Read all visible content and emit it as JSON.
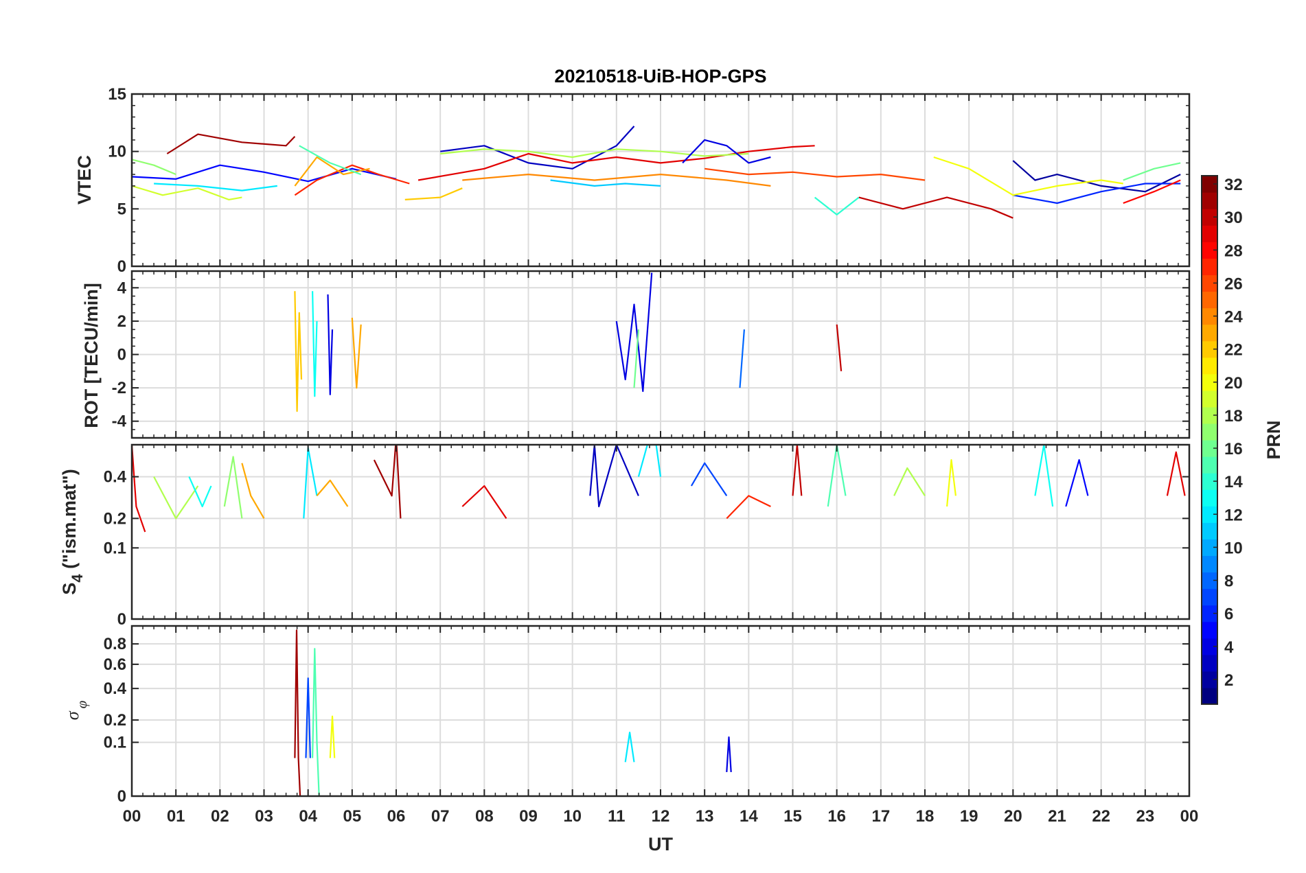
{
  "figure": {
    "title": "20210518-UiB-HOP-GPS",
    "xlabel": "UT",
    "x_tick_labels": [
      "00",
      "01",
      "02",
      "03",
      "04",
      "05",
      "06",
      "07",
      "08",
      "09",
      "10",
      "11",
      "12",
      "13",
      "14",
      "15",
      "16",
      "17",
      "18",
      "19",
      "20",
      "21",
      "22",
      "23",
      "00"
    ]
  },
  "colorbar": {
    "label": "PRN",
    "colormap": "jet",
    "range": [
      1,
      32
    ],
    "tick_values": [
      2,
      4,
      6,
      8,
      10,
      12,
      14,
      16,
      18,
      20,
      22,
      24,
      26,
      28,
      30,
      32
    ],
    "tick_labels": [
      "2",
      "4",
      "6",
      "8",
      "10",
      "12",
      "14",
      "16",
      "18",
      "20",
      "22",
      "24",
      "26",
      "28",
      "30",
      "32"
    ]
  },
  "chart_data": [
    {
      "type": "line",
      "panel": "VTEC",
      "ylabel": "VTEC",
      "xlim": [
        0,
        24
      ],
      "ylim": [
        0,
        15
      ],
      "ytick_values": [
        0,
        5,
        10,
        15
      ],
      "ytick_labels": [
        "0",
        "5",
        "10",
        "15"
      ],
      "grid": true,
      "series": [
        {
          "prn": 31,
          "x": [
            0.8,
            1.5,
            2.5,
            3.5,
            3.7
          ],
          "y": [
            9.8,
            11.5,
            10.8,
            10.5,
            11.3
          ]
        },
        {
          "prn": 5,
          "x": [
            0.0,
            1.0,
            2.0,
            3.0,
            4.0,
            5.0,
            6.0
          ],
          "y": [
            7.8,
            7.6,
            8.8,
            8.2,
            7.4,
            8.5,
            7.6
          ]
        },
        {
          "prn": 19,
          "x": [
            0.0,
            0.7,
            1.5,
            2.2,
            2.5
          ],
          "y": [
            7.0,
            6.2,
            6.8,
            5.8,
            6.0
          ]
        },
        {
          "prn": 27,
          "x": [
            3.7,
            4.2,
            5.0,
            5.6,
            6.3
          ],
          "y": [
            6.2,
            7.5,
            8.8,
            8.0,
            7.2
          ]
        },
        {
          "prn": 17,
          "x": [
            0.0,
            0.5,
            1.0
          ],
          "y": [
            9.3,
            8.8,
            8.0
          ]
        },
        {
          "prn": 12,
          "x": [
            0.5,
            1.5,
            2.5,
            3.3
          ],
          "y": [
            7.2,
            7.0,
            6.6,
            7.0
          ]
        },
        {
          "prn": 23,
          "x": [
            3.7,
            4.2,
            4.8,
            5.4
          ],
          "y": [
            7.0,
            9.5,
            8.0,
            8.5
          ]
        },
        {
          "prn": 15,
          "x": [
            3.8,
            4.5,
            5.2
          ],
          "y": [
            10.5,
            9.0,
            8.0
          ]
        },
        {
          "prn": 3,
          "x": [
            7.0,
            8.0,
            9.0,
            10.0,
            11.0,
            11.4
          ],
          "y": [
            10.0,
            10.5,
            9.0,
            8.5,
            10.5,
            12.2
          ]
        },
        {
          "prn": 22,
          "x": [
            6.2,
            7.0,
            7.5
          ],
          "y": [
            5.8,
            6.0,
            6.8
          ]
        },
        {
          "prn": 11,
          "x": [
            9.5,
            10.5,
            11.2,
            12.0
          ],
          "y": [
            7.5,
            7.0,
            7.2,
            7.0
          ]
        },
        {
          "prn": 29,
          "x": [
            6.5,
            8.0,
            9.0,
            10.0,
            11.0,
            12.0,
            13.0,
            14.0,
            15.0,
            15.5
          ],
          "y": [
            7.5,
            8.5,
            9.8,
            9.0,
            9.5,
            9.0,
            9.4,
            10.0,
            10.4,
            10.5
          ]
        },
        {
          "prn": 18,
          "x": [
            7.0,
            8.0,
            9.0,
            10.0,
            11.0,
            12.0,
            13.0,
            14.0
          ],
          "y": [
            9.8,
            10.2,
            10.0,
            9.5,
            10.2,
            10.0,
            9.6,
            9.8
          ]
        },
        {
          "prn": 24,
          "x": [
            7.5,
            9.0,
            10.5,
            12.0,
            13.5,
            14.5
          ],
          "y": [
            7.5,
            8.0,
            7.5,
            8.0,
            7.5,
            7.0
          ]
        },
        {
          "prn": 4,
          "x": [
            12.5,
            13.0,
            13.5,
            14.0,
            14.5
          ],
          "y": [
            9.0,
            11.0,
            10.5,
            9.0,
            9.5
          ]
        },
        {
          "prn": 26,
          "x": [
            13.0,
            14.0,
            15.0,
            16.0,
            17.0,
            18.0
          ],
          "y": [
            8.5,
            8.0,
            8.2,
            7.8,
            8.0,
            7.5
          ]
        },
        {
          "prn": 14,
          "x": [
            15.5,
            16.0,
            16.5
          ],
          "y": [
            6.0,
            4.5,
            6.0
          ]
        },
        {
          "prn": 30,
          "x": [
            16.5,
            17.5,
            18.5,
            19.5,
            20.0
          ],
          "y": [
            6.0,
            5.0,
            6.0,
            5.0,
            4.2
          ]
        },
        {
          "prn": 2,
          "x": [
            20.0,
            20.5,
            21.0,
            22.0,
            23.0,
            23.8
          ],
          "y": [
            9.2,
            7.5,
            8.0,
            7.0,
            6.5,
            8.0
          ]
        },
        {
          "prn": 6,
          "x": [
            20.0,
            21.0,
            22.0,
            23.0,
            23.8
          ],
          "y": [
            6.2,
            5.5,
            6.5,
            7.2,
            7.2
          ]
        },
        {
          "prn": 20,
          "x": [
            18.2,
            19.0,
            20.0,
            21.0,
            22.0,
            22.5
          ],
          "y": [
            9.5,
            8.5,
            6.2,
            7.0,
            7.5,
            7.2
          ]
        },
        {
          "prn": 16,
          "x": [
            22.5,
            23.2,
            23.8
          ],
          "y": [
            7.5,
            8.5,
            9.0
          ]
        },
        {
          "prn": 28,
          "x": [
            22.5,
            23.2,
            23.8
          ],
          "y": [
            5.5,
            6.5,
            7.5
          ]
        }
      ]
    },
    {
      "type": "line",
      "panel": "ROT",
      "ylabel": "ROT [TECU/min]",
      "xlim": [
        0,
        24
      ],
      "ylim": [
        -5,
        5
      ],
      "ytick_values": [
        -4,
        -2,
        0,
        2,
        4
      ],
      "ytick_labels": [
        "-4",
        "-2",
        "0",
        "2",
        "4"
      ],
      "grid": true,
      "series": [
        {
          "prn": 22,
          "x": [
            3.7,
            3.75,
            3.8,
            3.85
          ],
          "y": [
            3.8,
            -3.4,
            2.5,
            -1.5
          ]
        },
        {
          "prn": 13,
          "x": [
            4.1,
            4.15,
            4.2
          ],
          "y": [
            3.8,
            -2.5,
            2.0
          ]
        },
        {
          "prn": 4,
          "x": [
            4.45,
            4.5,
            4.55
          ],
          "y": [
            3.6,
            -2.4,
            1.5
          ]
        },
        {
          "prn": 23,
          "x": [
            5.0,
            5.1,
            5.2
          ],
          "y": [
            2.2,
            -2.0,
            1.8
          ]
        },
        {
          "prn": 4,
          "x": [
            11.0,
            11.2,
            11.4,
            11.6,
            11.8
          ],
          "y": [
            2.0,
            -1.5,
            3.0,
            -2.2,
            4.9
          ]
        },
        {
          "prn": 16,
          "x": [
            11.4,
            11.5
          ],
          "y": [
            -2.0,
            1.5
          ]
        },
        {
          "prn": 8,
          "x": [
            13.8,
            13.9
          ],
          "y": [
            -2.0,
            1.5
          ]
        },
        {
          "prn": 30,
          "x": [
            16.0,
            16.1
          ],
          "y": [
            1.8,
            -1.0
          ]
        }
      ]
    },
    {
      "type": "line",
      "panel": "S4",
      "ylabel": "S4 (\"ism.mat\")",
      "ylabel_base": "S",
      "ylabel_sub": "4",
      "ylabel_rest": " (\"ism.mat\")",
      "scale": "sqrt",
      "xlim": [
        0,
        24
      ],
      "ylim": [
        0,
        0.6
      ],
      "ytick_values": [
        0,
        0.1,
        0.2,
        0.4
      ],
      "ytick_labels": [
        "0",
        "0.1",
        "0.2",
        "0.4"
      ],
      "grid": true,
      "series": [
        {
          "prn": 29,
          "x": [
            0.0,
            0.1,
            0.3
          ],
          "y": [
            0.6,
            0.25,
            0.15
          ]
        },
        {
          "prn": 18,
          "x": [
            0.5,
            1.0,
            1.5
          ],
          "y": [
            0.4,
            0.2,
            0.35
          ]
        },
        {
          "prn": 13,
          "x": [
            1.3,
            1.6,
            1.8
          ],
          "y": [
            0.4,
            0.25,
            0.35
          ]
        },
        {
          "prn": 17,
          "x": [
            2.1,
            2.3,
            2.5
          ],
          "y": [
            0.25,
            0.52,
            0.2
          ]
        },
        {
          "prn": 23,
          "x": [
            2.5,
            2.7,
            3.0
          ],
          "y": [
            0.48,
            0.3,
            0.2
          ]
        },
        {
          "prn": 12,
          "x": [
            3.9,
            4.0,
            4.2
          ],
          "y": [
            0.2,
            0.58,
            0.3
          ]
        },
        {
          "prn": 23,
          "x": [
            4.2,
            4.5,
            4.9
          ],
          "y": [
            0.3,
            0.38,
            0.25
          ]
        },
        {
          "prn": 31,
          "x": [
            5.5,
            5.9,
            6.0,
            6.1
          ],
          "y": [
            0.5,
            0.3,
            0.65,
            0.2
          ]
        },
        {
          "prn": 29,
          "x": [
            7.5,
            8.0,
            8.5
          ],
          "y": [
            0.25,
            0.35,
            0.2
          ]
        },
        {
          "prn": 3,
          "x": [
            10.4,
            10.5,
            10.6,
            11.0,
            11.5
          ],
          "y": [
            0.3,
            0.6,
            0.25,
            0.6,
            0.3
          ]
        },
        {
          "prn": 12,
          "x": [
            11.5,
            11.7,
            11.9,
            12.0
          ],
          "y": [
            0.4,
            0.6,
            0.6,
            0.4
          ]
        },
        {
          "prn": 7,
          "x": [
            12.7,
            13.0,
            13.5
          ],
          "y": [
            0.35,
            0.48,
            0.3
          ]
        },
        {
          "prn": 27,
          "x": [
            13.5,
            14.0,
            14.5
          ],
          "y": [
            0.2,
            0.3,
            0.25
          ]
        },
        {
          "prn": 30,
          "x": [
            15.0,
            15.1,
            15.2
          ],
          "y": [
            0.3,
            0.6,
            0.3
          ]
        },
        {
          "prn": 15,
          "x": [
            15.8,
            16.0,
            16.2
          ],
          "y": [
            0.25,
            0.6,
            0.3
          ]
        },
        {
          "prn": 18,
          "x": [
            17.3,
            17.6,
            18.0
          ],
          "y": [
            0.3,
            0.45,
            0.3
          ]
        },
        {
          "prn": 20,
          "x": [
            18.5,
            18.6,
            18.7
          ],
          "y": [
            0.25,
            0.5,
            0.3
          ]
        },
        {
          "prn": 13,
          "x": [
            20.5,
            20.7,
            20.9
          ],
          "y": [
            0.3,
            0.6,
            0.25
          ]
        },
        {
          "prn": 5,
          "x": [
            21.2,
            21.5,
            21.7
          ],
          "y": [
            0.25,
            0.5,
            0.3
          ]
        },
        {
          "prn": 29,
          "x": [
            23.5,
            23.7,
            23.9
          ],
          "y": [
            0.3,
            0.55,
            0.3
          ]
        }
      ]
    },
    {
      "type": "line",
      "panel": "sigma_phi",
      "ylabel": "σ φ",
      "ylabel_base": "σ",
      "ylabel_sub": "φ",
      "scale": "sqrt",
      "xlim": [
        0,
        24
      ],
      "ylim": [
        0,
        1
      ],
      "ytick_values": [
        0,
        0.1,
        0.2,
        0.4,
        0.6,
        0.8
      ],
      "ytick_labels": [
        "0",
        "0.1",
        "0.2",
        "0.4",
        "0.6",
        "0.8"
      ],
      "grid": true,
      "series": [
        {
          "prn": 31,
          "x": [
            3.7,
            3.74,
            3.78,
            3.82
          ],
          "y": [
            0.05,
            0.95,
            0.05,
            0.0
          ]
        },
        {
          "prn": 15,
          "x": [
            4.1,
            4.15,
            4.2,
            4.25
          ],
          "y": [
            0.05,
            0.75,
            0.1,
            0.0
          ]
        },
        {
          "prn": 7,
          "x": [
            3.95,
            4.0,
            4.05
          ],
          "y": [
            0.05,
            0.48,
            0.05
          ]
        },
        {
          "prn": 20,
          "x": [
            4.5,
            4.55,
            4.6
          ],
          "y": [
            0.05,
            0.22,
            0.05
          ]
        },
        {
          "prn": 12,
          "x": [
            11.2,
            11.3,
            11.4
          ],
          "y": [
            0.04,
            0.14,
            0.04
          ]
        },
        {
          "prn": 4,
          "x": [
            13.5,
            13.55,
            13.6
          ],
          "y": [
            0.02,
            0.12,
            0.02
          ]
        }
      ]
    }
  ]
}
